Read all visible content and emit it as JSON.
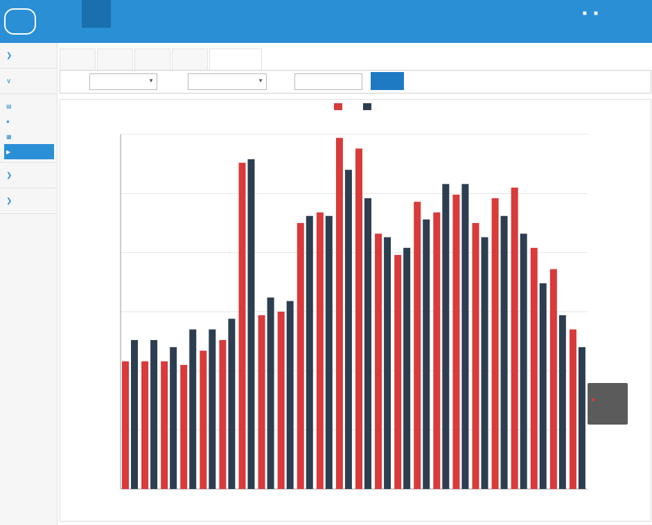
{
  "app": {
    "logo_subtitle": ""
  },
  "nav": {
    "items": [
      {
        "label": "",
        "active": true
      },
      {
        "label": ""
      },
      {
        "label": ""
      },
      {
        "label": ""
      },
      {
        "label": ""
      },
      {
        "label": ""
      }
    ]
  },
  "user": {
    "label": ""
  },
  "sidebar": {
    "groups": [
      {
        "label": "",
        "expanded": false
      },
      {
        "label": "",
        "expanded": true,
        "items": [
          {
            "label": "",
            "icon": "bar-chart-icon"
          },
          {
            "label": "",
            "icon": "pin-icon"
          },
          {
            "label": "",
            "icon": "table-icon"
          },
          {
            "label": "",
            "icon": "play-icon",
            "active": true
          }
        ]
      },
      {
        "label": "",
        "expanded": false
      },
      {
        "label": "",
        "expanded": false
      }
    ]
  },
  "tabs": [
    {
      "label": ""
    },
    {
      "label": ""
    },
    {
      "label": ""
    },
    {
      "label": ""
    },
    {
      "label": "",
      "active": true
    }
  ],
  "filters": {
    "f1": {
      "label": "",
      "value": ""
    },
    "f2": {
      "label": "",
      "value": ""
    },
    "f3": {
      "label": "",
      "value": ""
    },
    "query_label": ""
  },
  "tooltip": {
    "line1": "",
    "line2": "",
    "line3": ""
  },
  "colors": {
    "accent": "#2b8fd6",
    "series_red": "#d93a3a",
    "series_dark": "#2c3e50"
  },
  "chart_data": {
    "type": "bar",
    "note_units": "fraction of y-axis range",
    "title": "",
    "subtitle": "",
    "xlabel": "",
    "ylabel": "",
    "ylim": [
      0,
      1
    ],
    "categories": [
      "",
      "",
      "",
      "",
      "",
      "",
      "",
      "",
      "",
      "",
      "",
      "",
      "",
      "",
      "",
      "",
      "",
      "",
      "",
      "",
      "",
      "",
      "",
      ""
    ],
    "yticks": [
      "",
      "",
      "",
      "",
      "",
      "",
      ""
    ],
    "grid": true,
    "legend_position": "top-center",
    "series": [
      {
        "name": "",
        "color": "#d93a3a",
        "values": [
          0.36,
          0.36,
          0.36,
          0.35,
          0.39,
          0.42,
          0.92,
          0.49,
          0.5,
          0.75,
          0.78,
          0.99,
          0.96,
          0.72,
          0.66,
          0.81,
          0.78,
          0.83,
          0.75,
          0.82,
          0.85,
          0.68,
          0.62,
          0.45
        ]
      },
      {
        "name": "",
        "color": "#2c3e50",
        "values": [
          0.42,
          0.42,
          0.4,
          0.45,
          0.45,
          0.48,
          0.93,
          0.54,
          0.53,
          0.77,
          0.77,
          0.9,
          0.82,
          0.71,
          0.68,
          0.76,
          0.86,
          0.86,
          0.71,
          0.77,
          0.72,
          0.58,
          0.49,
          0.4
        ]
      }
    ]
  }
}
